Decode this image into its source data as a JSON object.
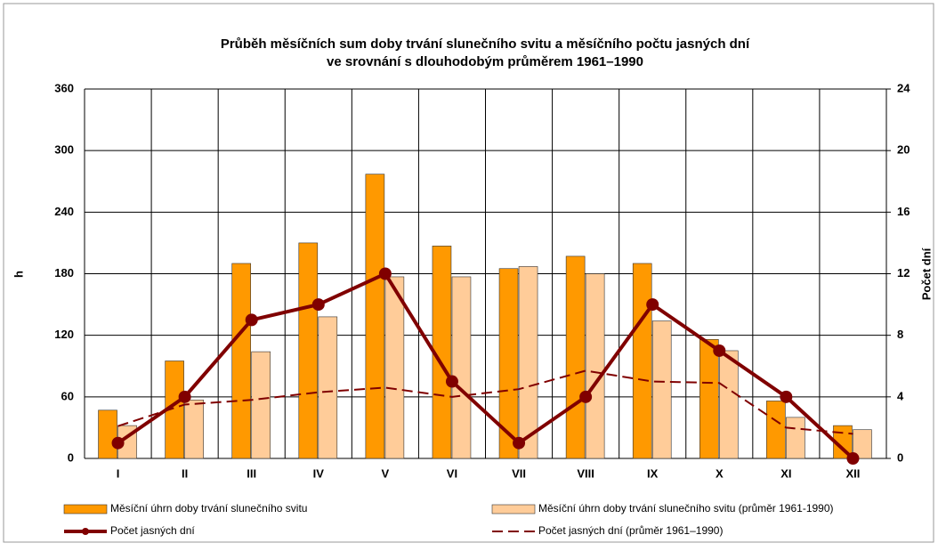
{
  "chart_data": {
    "type": "bar",
    "title": [
      "Průběh měsíčních sum doby trvání slunečního svitu a měsíčního počtu jasných dní",
      "ve srovnání s dlouhodobým průměrem 1961–1990"
    ],
    "ylabel": "h",
    "y2label": "Počet dní",
    "categories": [
      "I",
      "II",
      "III",
      "IV",
      "V",
      "VI",
      "VII",
      "VIII",
      "IX",
      "X",
      "XI",
      "XII"
    ],
    "ylim": [
      0,
      360
    ],
    "yticks": [
      0,
      60,
      120,
      180,
      240,
      300,
      360
    ],
    "y2lim": [
      0,
      24
    ],
    "y2ticks": [
      0,
      4,
      8,
      12,
      16,
      20,
      24
    ],
    "grid": true,
    "series": [
      {
        "name": "Měsíční úhrn doby trvání slunečního svitu",
        "type": "bar",
        "color": "#ff9900",
        "values": [
          47,
          95,
          190,
          210,
          277,
          207,
          185,
          197,
          190,
          116,
          56,
          32
        ]
      },
      {
        "name": "Měsíční úhrn doby trvání slunečního svitu (průměr 1961-1990)",
        "type": "bar",
        "color": "#ffcc99",
        "values": [
          32,
          57,
          104,
          138,
          177,
          177,
          187,
          180,
          134,
          105,
          40,
          28
        ]
      },
      {
        "name": "Počet jasných dní",
        "type": "line",
        "axis": "y2",
        "color": "#800000",
        "values": [
          1,
          4,
          9,
          10,
          12,
          5,
          1,
          4,
          10,
          7,
          4,
          0
        ]
      },
      {
        "name": "Počet jasných dní (průměr 1961–1990)",
        "type": "line",
        "axis": "y2",
        "dashed": true,
        "color": "#800000",
        "values": [
          2.1,
          3.5,
          3.8,
          4.3,
          4.6,
          4.0,
          4.5,
          5.7,
          5.0,
          4.9,
          2.0,
          1.6
        ]
      }
    ]
  }
}
